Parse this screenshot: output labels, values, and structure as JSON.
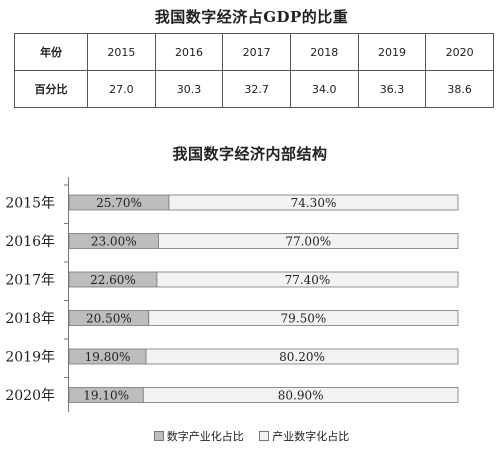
{
  "table": {
    "title": "我国数字经济占GDP的比重",
    "header_label": "年份",
    "row_label": "百分比",
    "years": [
      "2015",
      "2016",
      "2017",
      "2018",
      "2019",
      "2020"
    ],
    "values": [
      "27.0",
      "30.3",
      "32.7",
      "34.0",
      "36.3",
      "38.6"
    ]
  },
  "chart_data": {
    "type": "bar",
    "orientation": "horizontal",
    "stacked": true,
    "title": "我国数字经济内部结构",
    "categories": [
      "2015年",
      "2016年",
      "2017年",
      "2018年",
      "2019年",
      "2020年"
    ],
    "series": [
      {
        "name": "数字产业化占比",
        "color": "#bdbdbd",
        "values": [
          25.7,
          23.0,
          22.6,
          20.5,
          19.8,
          19.1
        ],
        "labels": [
          "25.70%",
          "23.00%",
          "22.60%",
          "20.50%",
          "19.80%",
          "19.10%"
        ]
      },
      {
        "name": "产业数字化占比",
        "color": "#f2f2f2",
        "values": [
          74.3,
          77.0,
          77.4,
          79.5,
          80.2,
          80.9
        ],
        "labels": [
          "74.30%",
          "77.00%",
          "77.40%",
          "79.50%",
          "80.20%",
          "80.90%"
        ]
      }
    ],
    "xlim": [
      0,
      100
    ],
    "grid": false,
    "legend_position": "bottom"
  }
}
